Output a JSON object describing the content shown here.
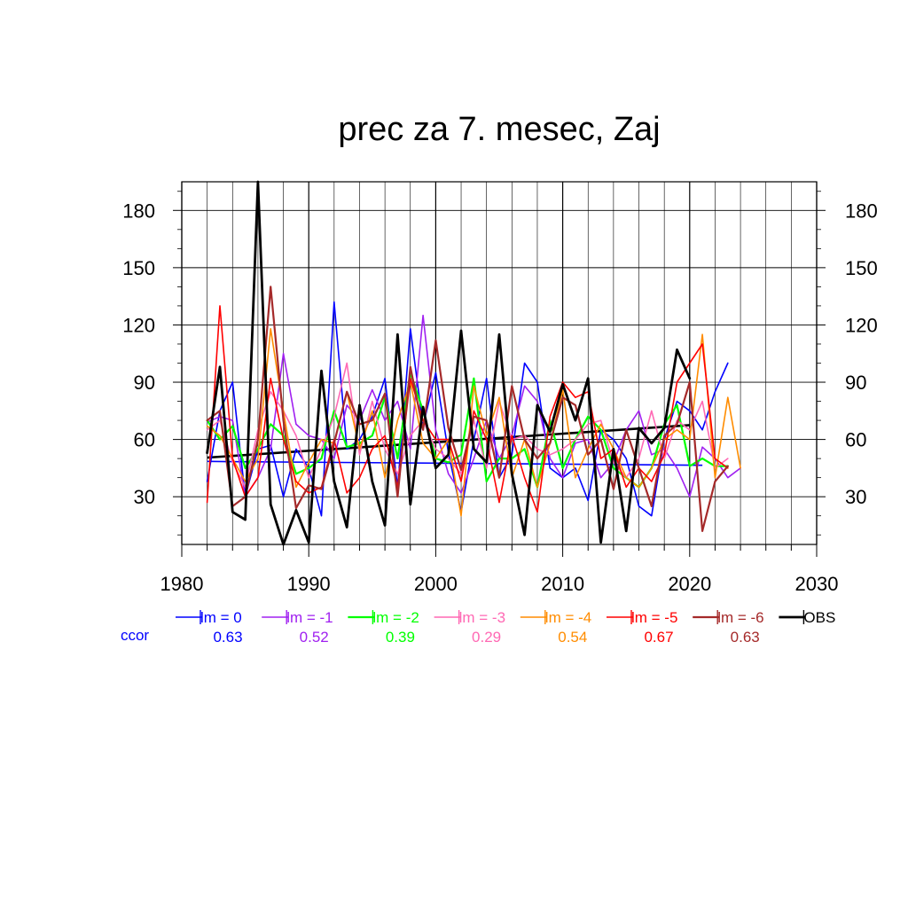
{
  "chart_data": {
    "type": "line",
    "title": "prec za 7. mesec, Zaj",
    "xlabel": "",
    "ylabel": "",
    "xlim": [
      1980,
      2030
    ],
    "ylim": [
      5,
      195
    ],
    "x_ticks": [
      "1980",
      "1990",
      "2000",
      "2010",
      "2020",
      "2030"
    ],
    "y_ticks": [
      "30",
      "60",
      "90",
      "120",
      "150",
      "180"
    ],
    "grid": true,
    "legend_position": "bottom",
    "ccor_label": "ccor",
    "series": [
      {
        "name": "lm = 0",
        "color": "#0000ff",
        "ccor": "0.63",
        "width": 1.6,
        "x_start": 1982,
        "values": [
          38,
          75,
          90,
          30,
          55,
          57,
          30,
          55,
          45,
          20,
          132,
          55,
          60,
          72,
          92,
          35,
          118,
          67,
          95,
          53,
          22,
          60,
          92,
          40,
          52,
          100,
          90,
          45,
          40,
          45,
          28,
          65,
          60,
          50,
          25,
          20,
          60,
          80,
          75,
          65,
          85,
          100
        ]
      },
      {
        "name": "lm = -1",
        "color": "#a020f0",
        "ccor": "0.52",
        "width": 1.6,
        "x_start": 1982,
        "values": [
          69,
          72,
          70,
          30,
          40,
          55,
          105,
          68,
          62,
          60,
          50,
          78,
          70,
          86,
          70,
          80,
          55,
          125,
          65,
          42,
          32,
          50,
          70,
          50,
          62,
          88,
          80,
          50,
          40,
          58,
          60,
          40,
          48,
          65,
          75,
          52,
          55,
          45,
          30,
          56,
          50,
          40,
          45
        ]
      },
      {
        "name": "lm = -2",
        "color": "#00ff00",
        "ccor": "0.39",
        "width": 2.2,
        "x_start": 1982,
        "values": [
          70,
          60,
          67,
          45,
          55,
          68,
          62,
          42,
          45,
          50,
          75,
          56,
          58,
          62,
          82,
          50,
          95,
          75,
          50,
          48,
          52,
          92,
          38,
          50,
          50,
          55,
          35,
          70,
          45,
          60,
          72,
          65,
          45,
          40,
          35,
          45,
          68,
          78,
          46,
          50,
          46,
          46
        ]
      },
      {
        "name": "lm = -3",
        "color": "#ff69b4",
        "ccor": "0.29",
        "width": 1.6,
        "x_start": 1982,
        "values": [
          65,
          70,
          48,
          35,
          65,
          85,
          75,
          62,
          40,
          55,
          72,
          100,
          52,
          80,
          55,
          42,
          62,
          70,
          55,
          50,
          42,
          70,
          45,
          80,
          60,
          62,
          55,
          52,
          55,
          60,
          68,
          70,
          48,
          40,
          50,
          75,
          50,
          70,
          65,
          80,
          45,
          50
        ]
      },
      {
        "name": "lm = -4",
        "color": "#ff8c00",
        "ccor": "0.54",
        "width": 1.6,
        "x_start": 1982,
        "values": [
          67,
          62,
          50,
          38,
          50,
          118,
          75,
          35,
          48,
          60,
          58,
          85,
          55,
          75,
          40,
          70,
          90,
          58,
          50,
          60,
          20,
          88,
          62,
          82,
          40,
          60,
          35,
          58,
          86,
          40,
          55,
          68,
          55,
          40,
          35,
          45,
          60,
          65,
          60,
          115,
          40,
          82,
          45
        ]
      },
      {
        "name": "lm = -5",
        "color": "#ff0000",
        "ccor": "0.67",
        "width": 1.6,
        "x_start": 1982,
        "values": [
          27,
          130,
          50,
          30,
          40,
          92,
          60,
          38,
          32,
          35,
          60,
          32,
          40,
          55,
          62,
          35,
          92,
          70,
          60,
          60,
          38,
          75,
          60,
          27,
          62,
          40,
          22,
          72,
          90,
          82,
          85,
          50,
          55,
          35,
          45,
          38,
          52,
          90,
          100,
          110,
          50,
          45
        ]
      },
      {
        "name": "lm = -6",
        "color": "#a52a2a",
        "ccor": "0.63",
        "width": 2.2,
        "x_start": 1982,
        "values": [
          70,
          75,
          25,
          30,
          60,
          140,
          70,
          24,
          36,
          34,
          58,
          85,
          68,
          70,
          84,
          30,
          98,
          65,
          112,
          66,
          44,
          72,
          70,
          40,
          88,
          60,
          50,
          58,
          82,
          78,
          52,
          60,
          34,
          65,
          45,
          25,
          62,
          68,
          90,
          12,
          38,
          46
        ]
      },
      {
        "name": "OBS",
        "color": "#000000",
        "ccor": "",
        "width": 2.8,
        "x_start": 1982,
        "values": [
          53,
          98,
          22,
          18,
          195,
          26,
          5,
          23,
          6,
          96,
          38,
          14,
          78,
          38,
          15,
          115,
          26,
          77,
          45,
          52,
          117,
          55,
          48,
          115,
          42,
          10,
          78,
          64,
          89,
          70,
          92,
          6,
          55,
          12,
          66,
          58,
          66,
          107,
          92
        ]
      }
    ],
    "trend_lines": [
      {
        "color": "#0000ff",
        "x": [
          1982,
          2021
        ],
        "y": [
          48.5,
          46.5
        ]
      },
      {
        "color": "#000000",
        "x": [
          1982,
          2020
        ],
        "y": [
          50.5,
          67.5
        ]
      }
    ]
  }
}
